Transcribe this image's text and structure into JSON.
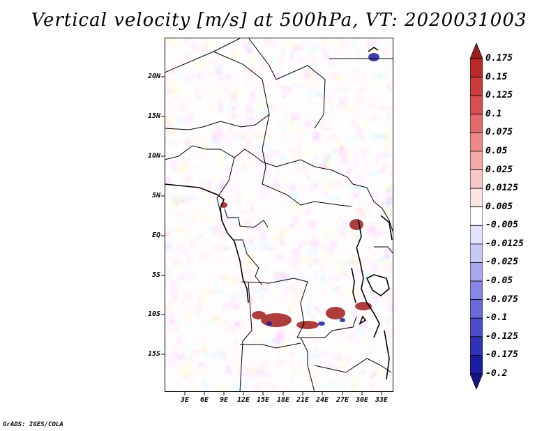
{
  "title": "Vertical velocity [m/s] at 500hPa, VT: 2020031003",
  "footer": "GrADS: IGES/COLA",
  "colors": {
    "frame": "#000000",
    "pos_dark": "#b22222",
    "neg_dark": "#1c1ca0"
  },
  "map": {
    "lat_labels": [
      "20N",
      "15N",
      "10N",
      "5N",
      "EQ",
      "5S",
      "10S",
      "15S"
    ],
    "lat_values": [
      20,
      15,
      10,
      5,
      0,
      -5,
      -10,
      -15
    ],
    "lon_labels": [
      "3E",
      "6E",
      "9E",
      "12E",
      "15E",
      "18E",
      "21E",
      "24E",
      "27E",
      "30E",
      "33E"
    ],
    "lon_values": [
      3,
      6,
      9,
      12,
      15,
      18,
      21,
      24,
      27,
      30,
      33
    ],
    "lon_range": [
      0.3,
      34.8
    ],
    "lat_range": [
      -20,
      24.5
    ],
    "field_name": "Vertical velocity",
    "units": "m/s",
    "level": "500hPa"
  },
  "colorbar": {
    "labels": [
      "0.175",
      "0.15",
      "0.125",
      "0.1",
      "0.075",
      "0.05",
      "0.025",
      "0.0125",
      "0.005",
      "-0.005",
      "-0.0125",
      "-0.025",
      "-0.05",
      "-0.075",
      "-0.1",
      "-0.125",
      "-0.175",
      "-0.2"
    ],
    "colors": [
      "#a01c1c",
      "#bb2a2a",
      "#cc3c3c",
      "#d94f4f",
      "#e26a6a",
      "#ec8a8a",
      "#f4aaaa",
      "#f8c8c8",
      "#fbe4e4",
      "#ffffff",
      "#e2e2fa",
      "#c8c8f4",
      "#a8a8ee",
      "#8888e4",
      "#6a6ad8",
      "#4c4ccc",
      "#3030b8",
      "#1c1ca0",
      "#14148a"
    ]
  }
}
